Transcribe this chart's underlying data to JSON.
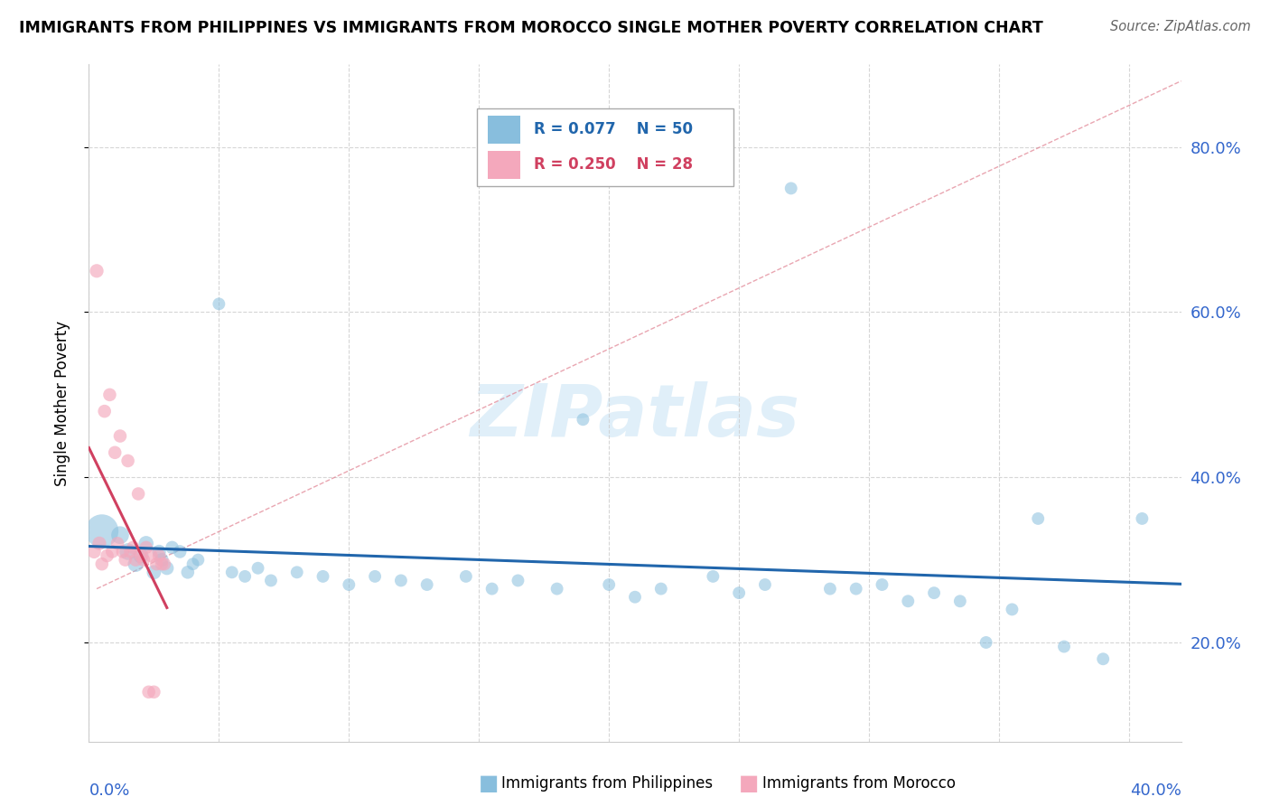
{
  "title": "IMMIGRANTS FROM PHILIPPINES VS IMMIGRANTS FROM MOROCCO SINGLE MOTHER POVERTY CORRELATION CHART",
  "source": "Source: ZipAtlas.com",
  "ylabel": "Single Mother Poverty",
  "color_philippines": "#88bedd",
  "color_morocco": "#f4a8bc",
  "color_philippines_line": "#2166ac",
  "color_morocco_line": "#d04060",
  "color_dashed": "#e08090",
  "xlim": [
    0.0,
    0.42
  ],
  "ylim": [
    0.08,
    0.9
  ],
  "phil_x": [
    0.005,
    0.012,
    0.015,
    0.018,
    0.02,
    0.022,
    0.025,
    0.027,
    0.028,
    0.03,
    0.032,
    0.035,
    0.038,
    0.04,
    0.042,
    0.05,
    0.055,
    0.06,
    0.065,
    0.07,
    0.08,
    0.09,
    0.1,
    0.11,
    0.12,
    0.13,
    0.145,
    0.155,
    0.165,
    0.18,
    0.19,
    0.2,
    0.21,
    0.22,
    0.24,
    0.25,
    0.26,
    0.27,
    0.285,
    0.295,
    0.305,
    0.315,
    0.325,
    0.335,
    0.345,
    0.355,
    0.365,
    0.375,
    0.39,
    0.405
  ],
  "phil_y": [
    0.335,
    0.33,
    0.31,
    0.295,
    0.305,
    0.32,
    0.285,
    0.31,
    0.3,
    0.29,
    0.315,
    0.31,
    0.285,
    0.295,
    0.3,
    0.61,
    0.285,
    0.28,
    0.29,
    0.275,
    0.285,
    0.28,
    0.27,
    0.28,
    0.275,
    0.27,
    0.28,
    0.265,
    0.275,
    0.265,
    0.47,
    0.27,
    0.255,
    0.265,
    0.28,
    0.26,
    0.27,
    0.75,
    0.265,
    0.265,
    0.27,
    0.25,
    0.26,
    0.25,
    0.2,
    0.24,
    0.35,
    0.195,
    0.18,
    0.35
  ],
  "phil_sizes": [
    700,
    200,
    180,
    160,
    150,
    140,
    130,
    120,
    120,
    120,
    110,
    110,
    110,
    100,
    100,
    100,
    100,
    100,
    100,
    100,
    100,
    100,
    100,
    100,
    100,
    100,
    100,
    100,
    100,
    100,
    100,
    100,
    100,
    100,
    100,
    100,
    100,
    100,
    100,
    100,
    100,
    100,
    100,
    100,
    100,
    100,
    100,
    100,
    100,
    100
  ],
  "mor_x": [
    0.002,
    0.003,
    0.004,
    0.005,
    0.006,
    0.007,
    0.008,
    0.009,
    0.01,
    0.011,
    0.012,
    0.013,
    0.014,
    0.015,
    0.016,
    0.017,
    0.018,
    0.019,
    0.02,
    0.021,
    0.022,
    0.023,
    0.024,
    0.025,
    0.026,
    0.027,
    0.028,
    0.029
  ],
  "mor_y": [
    0.31,
    0.65,
    0.32,
    0.295,
    0.48,
    0.305,
    0.5,
    0.31,
    0.43,
    0.32,
    0.45,
    0.31,
    0.3,
    0.42,
    0.31,
    0.315,
    0.3,
    0.38,
    0.305,
    0.3,
    0.315,
    0.14,
    0.305,
    0.14,
    0.295,
    0.305,
    0.295,
    0.295
  ],
  "mor_sizes": [
    120,
    120,
    120,
    110,
    110,
    110,
    110,
    110,
    110,
    110,
    110,
    110,
    110,
    110,
    110,
    110,
    110,
    110,
    110,
    110,
    110,
    110,
    110,
    110,
    110,
    110,
    110,
    110
  ]
}
